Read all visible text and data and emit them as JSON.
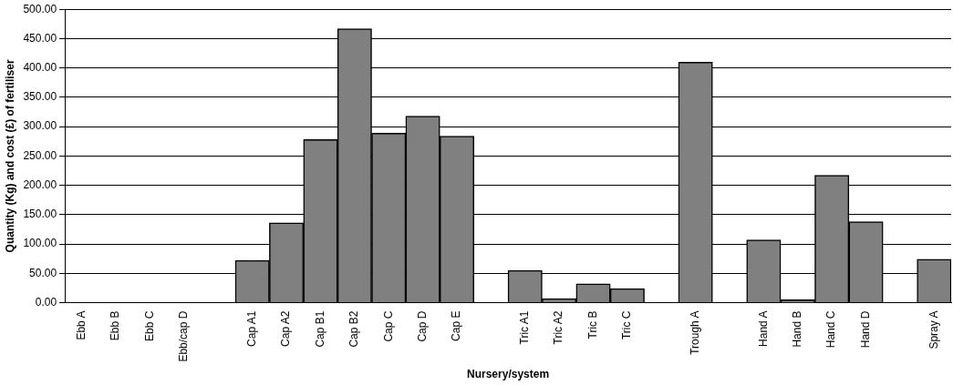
{
  "chart_data": {
    "type": "bar",
    "xlabel": "Nursery/system",
    "ylabel": "Quantity (Kg) and cost (£) of fertiliser",
    "categories": [
      "Ebb A",
      "Ebb B",
      "Ebb C",
      "Ebb/cap D",
      null,
      "Cap A1",
      "Cap A2",
      "Cap B1",
      "Cap B2",
      "Cap C",
      "Cap D",
      "Cap E",
      null,
      "Tric A1",
      "Tric A2",
      "Tric B",
      "Tric C",
      null,
      "Trough A",
      null,
      "Hand A",
      "Hand B",
      "Hand C",
      "Hand D",
      null,
      "Spray A"
    ],
    "values": [
      0,
      0,
      0,
      0,
      null,
      72,
      136,
      278,
      467,
      289,
      318,
      284,
      null,
      55,
      7,
      32,
      24,
      null,
      410,
      null,
      107,
      5,
      217,
      138,
      null,
      74
    ],
    "color": "#808080",
    "ylim": [
      0,
      500
    ],
    "yticks": [
      {
        "value": 0,
        "label": "0.00"
      },
      {
        "value": 50,
        "label": "50.00"
      },
      {
        "value": 100,
        "label": "100.00"
      },
      {
        "value": 150,
        "label": "150.00"
      },
      {
        "value": 200,
        "label": "200.00"
      },
      {
        "value": 250,
        "label": "250.00"
      },
      {
        "value": 300,
        "label": "300.00"
      },
      {
        "value": 350,
        "label": "350.00"
      },
      {
        "value": 400,
        "label": "400.00"
      },
      {
        "value": 450,
        "label": "450.00"
      },
      {
        "value": 500,
        "label": "500.00"
      }
    ],
    "grid": "y",
    "legend": false
  }
}
